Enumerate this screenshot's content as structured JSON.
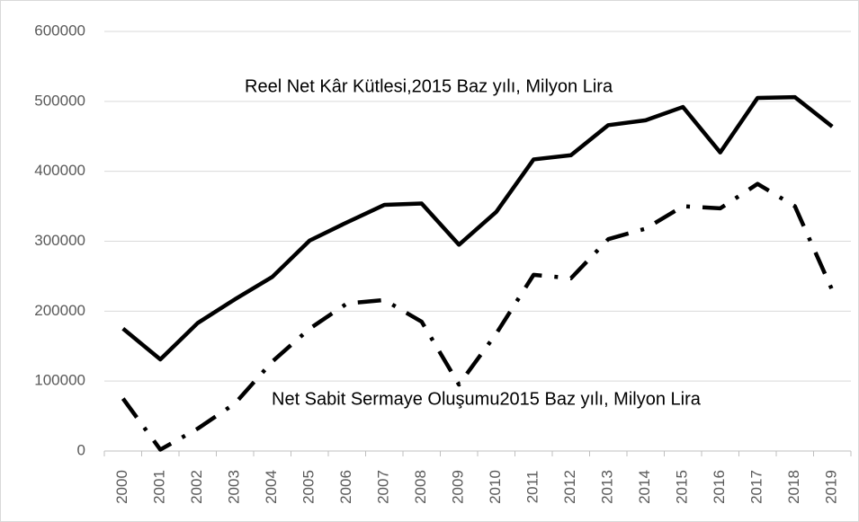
{
  "chart_data": {
    "type": "line",
    "categories": [
      "2000",
      "2001",
      "2002",
      "2003",
      "2004",
      "2005",
      "2006",
      "2007",
      "2008",
      "2009",
      "2010",
      "2011",
      "2012",
      "2013",
      "2014",
      "2015",
      "2016",
      "2017",
      "2018",
      "2019"
    ],
    "series": [
      {
        "name": "Reel Net Kâr Kütlesi,2015 Baz yılı, Milyon Lira",
        "color": "#000000",
        "dash": "solid",
        "values": [
          175000,
          131000,
          183000,
          217000,
          249000,
          301000,
          327000,
          352000,
          354000,
          295000,
          342000,
          417000,
          423000,
          466000,
          473000,
          492000,
          427000,
          505000,
          506000,
          464000
        ]
      },
      {
        "name": "Net Sabit Sermaye Oluşumu2015 Baz yılı, Milyon Lira",
        "color": "#000000",
        "dash": "dash-dot",
        "values": [
          75000,
          2000,
          32000,
          68000,
          128000,
          175000,
          211000,
          216000,
          185000,
          95000,
          168000,
          252000,
          247000,
          303000,
          318000,
          350000,
          347000,
          382000,
          350000,
          230000
        ]
      }
    ],
    "ylim": [
      0,
      600000
    ],
    "yticks": [
      0,
      100000,
      200000,
      300000,
      400000,
      500000,
      600000
    ],
    "grid": true
  }
}
